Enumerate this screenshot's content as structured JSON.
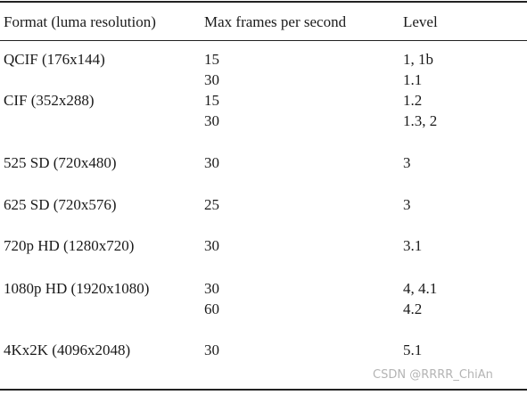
{
  "table": {
    "headers": {
      "format": "Format (luma resolution)",
      "fps": "Max frames per second",
      "level": "Level"
    },
    "rows": [
      {
        "format": "QCIF (176x144)",
        "fps": "15",
        "level": "1, 1b"
      },
      {
        "format": "",
        "fps": "30",
        "level": "1.1"
      },
      {
        "format": "CIF (352x288)",
        "fps": "15",
        "level": "1.2"
      },
      {
        "format": "",
        "fps": "30",
        "level": "1.3, 2"
      },
      {
        "format": "525 SD (720x480)",
        "fps": "30",
        "level": "3"
      },
      {
        "format": "625 SD (720x576)",
        "fps": "25",
        "level": "3"
      },
      {
        "format": "720p HD (1280x720)",
        "fps": "30",
        "level": "3.1"
      },
      {
        "format": "1080p HD (1920x1080)",
        "fps": "30",
        "level": "4, 4.1"
      },
      {
        "format": "",
        "fps": "60",
        "level": "4.2"
      },
      {
        "format": "4Kx2K (4096x2048)",
        "fps": "30",
        "level": "5.1"
      }
    ]
  },
  "watermark": "CSDN @RRRR_ChiAn"
}
